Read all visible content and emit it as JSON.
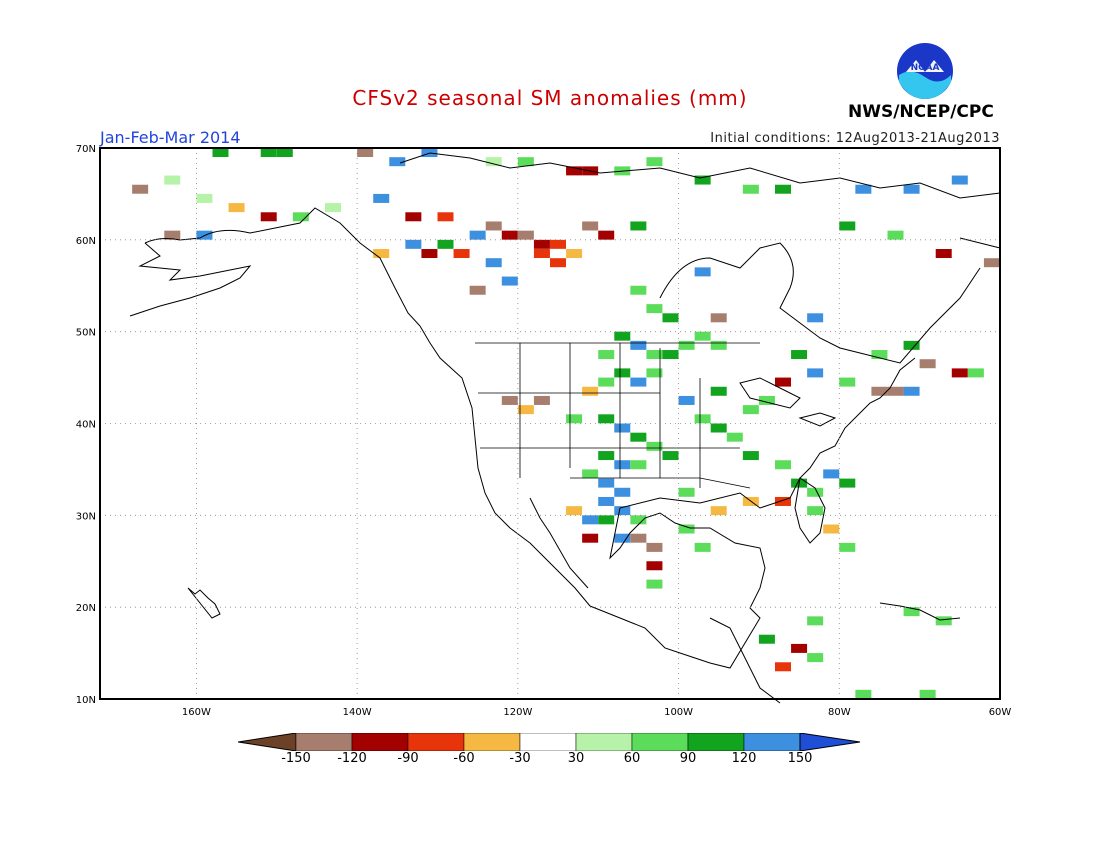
{
  "header": {
    "title": "CFSv2 seasonal SM anomalies (mm)",
    "period": "Jan-Feb-Mar 2014",
    "initial_conditions": "Initial conditions: 12Aug2013-21Aug2013",
    "agency": "NWS/NCEP/CPC",
    "logo_text": "NOAA"
  },
  "map": {
    "projection": "cylindrical lat/lon",
    "lon_range": [
      -172,
      -60
    ],
    "lat_range": [
      10,
      70
    ],
    "lat_labels": [
      "70N",
      "60N",
      "50N",
      "40N",
      "30N",
      "20N",
      "10N"
    ],
    "lon_labels": [
      "160W",
      "140W",
      "120W",
      "100W",
      "80W",
      "60W"
    ],
    "grid": "dotted"
  },
  "colorbar": {
    "labels": [
      "-150",
      "-120",
      "-90",
      "-60",
      "-30",
      "30",
      "60",
      "90",
      "120",
      "150"
    ],
    "colors": [
      "#6b4226",
      "#a77e6e",
      "#a30000",
      "#e8340b",
      "#f5b842",
      "#ffffff",
      "#b6f2a7",
      "#5bdd5b",
      "#12a31f",
      "#3d8fe0",
      "#1f4fd6"
    ]
  },
  "anomaly_cells": [
    {
      "lon": -158,
      "lat": 69,
      "v": 100
    },
    {
      "lon": -152,
      "lat": 69,
      "v": 100
    },
    {
      "lon": -150,
      "lat": 69,
      "v": 100
    },
    {
      "lon": -140,
      "lat": 69,
      "v": -130
    },
    {
      "lon": -136,
      "lat": 68,
      "v": 130
    },
    {
      "lon": -132,
      "lat": 69,
      "v": 130
    },
    {
      "lon": -124,
      "lat": 68,
      "v": 50
    },
    {
      "lon": -120,
      "lat": 68,
      "v": 70
    },
    {
      "lon": -114,
      "lat": 67,
      "v": -100
    },
    {
      "lon": -112,
      "lat": 67,
      "v": -120
    },
    {
      "lon": -108,
      "lat": 67,
      "v": 70
    },
    {
      "lon": -104,
      "lat": 68,
      "v": 70
    },
    {
      "lon": -98,
      "lat": 66,
      "v": 100
    },
    {
      "lon": -92,
      "lat": 65,
      "v": 70
    },
    {
      "lon": -88,
      "lat": 65,
      "v": 100
    },
    {
      "lon": -78,
      "lat": 65,
      "v": 130
    },
    {
      "lon": -72,
      "lat": 65,
      "v": 130
    },
    {
      "lon": -66,
      "lat": 66,
      "v": 130
    },
    {
      "lon": -168,
      "lat": 65,
      "v": -140
    },
    {
      "lon": -164,
      "lat": 66,
      "v": 50
    },
    {
      "lon": -160,
      "lat": 64,
      "v": 50
    },
    {
      "lon": -156,
      "lat": 63,
      "v": -40
    },
    {
      "lon": -152,
      "lat": 62,
      "v": -120
    },
    {
      "lon": -148,
      "lat": 62,
      "v": 70
    },
    {
      "lon": -144,
      "lat": 63,
      "v": 50
    },
    {
      "lon": -138,
      "lat": 64,
      "v": 130
    },
    {
      "lon": -134,
      "lat": 62,
      "v": -100
    },
    {
      "lon": -130,
      "lat": 62,
      "v": -70
    },
    {
      "lon": -126,
      "lat": 60,
      "v": 130
    },
    {
      "lon": -124,
      "lat": 61,
      "v": -130
    },
    {
      "lon": -122,
      "lat": 60,
      "v": -100
    },
    {
      "lon": -120,
      "lat": 60,
      "v": -130
    },
    {
      "lon": -118,
      "lat": 59,
      "v": -100
    },
    {
      "lon": -116,
      "lat": 59,
      "v": -70
    },
    {
      "lon": -118,
      "lat": 58,
      "v": -70
    },
    {
      "lon": -114,
      "lat": 58,
      "v": -40
    },
    {
      "lon": -116,
      "lat": 57,
      "v": -70
    },
    {
      "lon": -112,
      "lat": 61,
      "v": -130
    },
    {
      "lon": -110,
      "lat": 60,
      "v": -100
    },
    {
      "lon": -106,
      "lat": 61,
      "v": 100
    },
    {
      "lon": -134,
      "lat": 59,
      "v": 130
    },
    {
      "lon": -132,
      "lat": 58,
      "v": -100
    },
    {
      "lon": -138,
      "lat": 58,
      "v": -40
    },
    {
      "lon": -130,
      "lat": 59,
      "v": 100
    },
    {
      "lon": -128,
      "lat": 58,
      "v": -70
    },
    {
      "lon": -124,
      "lat": 57,
      "v": 130
    },
    {
      "lon": -122,
      "lat": 55,
      "v": 130
    },
    {
      "lon": -126,
      "lat": 54,
      "v": -130
    },
    {
      "lon": -164,
      "lat": 60,
      "v": -130
    },
    {
      "lon": -160,
      "lat": 60,
      "v": 130
    },
    {
      "lon": -62,
      "lat": 57,
      "v": -130
    },
    {
      "lon": -68,
      "lat": 58,
      "v": -120
    },
    {
      "lon": -74,
      "lat": 60,
      "v": 70
    },
    {
      "lon": -80,
      "lat": 61,
      "v": 100
    },
    {
      "lon": -98,
      "lat": 56,
      "v": 130
    },
    {
      "lon": -106,
      "lat": 54,
      "v": 70
    },
    {
      "lon": -104,
      "lat": 52,
      "v": 70
    },
    {
      "lon": -102,
      "lat": 51,
      "v": 100
    },
    {
      "lon": -96,
      "lat": 51,
      "v": -130
    },
    {
      "lon": -84,
      "lat": 51,
      "v": 130
    },
    {
      "lon": -108,
      "lat": 49,
      "v": 100
    },
    {
      "lon": -106,
      "lat": 48,
      "v": 130
    },
    {
      "lon": -104,
      "lat": 47,
      "v": 70
    },
    {
      "lon": -102,
      "lat": 47,
      "v": 100
    },
    {
      "lon": -100,
      "lat": 48,
      "v": 70
    },
    {
      "lon": -98,
      "lat": 49,
      "v": 70
    },
    {
      "lon": -96,
      "lat": 48,
      "v": 70
    },
    {
      "lon": -110,
      "lat": 47,
      "v": 70
    },
    {
      "lon": -108,
      "lat": 45,
      "v": 100
    },
    {
      "lon": -106,
      "lat": 44,
      "v": 130
    },
    {
      "lon": -104,
      "lat": 45,
      "v": 70
    },
    {
      "lon": -110,
      "lat": 44,
      "v": 70
    },
    {
      "lon": -112,
      "lat": 43,
      "v": -40
    },
    {
      "lon": -118,
      "lat": 42,
      "v": -140
    },
    {
      "lon": -122,
      "lat": 42,
      "v": -140
    },
    {
      "lon": -120,
      "lat": 41,
      "v": -40
    },
    {
      "lon": -114,
      "lat": 40,
      "v": 70
    },
    {
      "lon": -110,
      "lat": 40,
      "v": 100
    },
    {
      "lon": -108,
      "lat": 39,
      "v": 130
    },
    {
      "lon": -106,
      "lat": 38,
      "v": 100
    },
    {
      "lon": -104,
      "lat": 37,
      "v": 70
    },
    {
      "lon": -110,
      "lat": 36,
      "v": 100
    },
    {
      "lon": -108,
      "lat": 35,
      "v": 130
    },
    {
      "lon": -106,
      "lat": 35,
      "v": 70
    },
    {
      "lon": -112,
      "lat": 34,
      "v": 70
    },
    {
      "lon": -110,
      "lat": 33,
      "v": 130
    },
    {
      "lon": -108,
      "lat": 32,
      "v": 130
    },
    {
      "lon": -110,
      "lat": 31,
      "v": 130
    },
    {
      "lon": -108,
      "lat": 30,
      "v": 130
    },
    {
      "lon": -112,
      "lat": 29,
      "v": 130
    },
    {
      "lon": -110,
      "lat": 29,
      "v": 100
    },
    {
      "lon": -106,
      "lat": 29,
      "v": 70
    },
    {
      "lon": -106,
      "lat": 27,
      "v": -140
    },
    {
      "lon": -104,
      "lat": 26,
      "v": -140
    },
    {
      "lon": -108,
      "lat": 27,
      "v": 130
    },
    {
      "lon": -112,
      "lat": 27,
      "v": -100
    },
    {
      "lon": -114,
      "lat": 30,
      "v": -40
    },
    {
      "lon": -104,
      "lat": 24,
      "v": -100
    },
    {
      "lon": -104,
      "lat": 22,
      "v": 70
    },
    {
      "lon": -100,
      "lat": 28,
      "v": 70
    },
    {
      "lon": -98,
      "lat": 26,
      "v": 70
    },
    {
      "lon": -100,
      "lat": 32,
      "v": 70
    },
    {
      "lon": -102,
      "lat": 36,
      "v": 100
    },
    {
      "lon": -96,
      "lat": 39,
      "v": 100
    },
    {
      "lon": -94,
      "lat": 38,
      "v": 70
    },
    {
      "lon": -98,
      "lat": 40,
      "v": 70
    },
    {
      "lon": -100,
      "lat": 42,
      "v": 130
    },
    {
      "lon": -96,
      "lat": 43,
      "v": 100
    },
    {
      "lon": -92,
      "lat": 41,
      "v": 70
    },
    {
      "lon": -90,
      "lat": 42,
      "v": 70
    },
    {
      "lon": -92,
      "lat": 36,
      "v": 100
    },
    {
      "lon": -88,
      "lat": 35,
      "v": 70
    },
    {
      "lon": -86,
      "lat": 33,
      "v": 100
    },
    {
      "lon": -84,
      "lat": 32,
      "v": 70
    },
    {
      "lon": -82,
      "lat": 34,
      "v": 130
    },
    {
      "lon": -80,
      "lat": 33,
      "v": 100
    },
    {
      "lon": -88,
      "lat": 31,
      "v": -70
    },
    {
      "lon": -92,
      "lat": 31,
      "v": -40
    },
    {
      "lon": -96,
      "lat": 30,
      "v": -40
    },
    {
      "lon": -84,
      "lat": 30,
      "v": 70
    },
    {
      "lon": -82,
      "lat": 28,
      "v": -40
    },
    {
      "lon": -80,
      "lat": 26,
      "v": 70
    },
    {
      "lon": -88,
      "lat": 44,
      "v": -100
    },
    {
      "lon": -84,
      "lat": 45,
      "v": 130
    },
    {
      "lon": -80,
      "lat": 44,
      "v": 70
    },
    {
      "lon": -76,
      "lat": 43,
      "v": -140
    },
    {
      "lon": -74,
      "lat": 43,
      "v": -140
    },
    {
      "lon": -72,
      "lat": 43,
      "v": 130
    },
    {
      "lon": -70,
      "lat": 46,
      "v": -130
    },
    {
      "lon": -66,
      "lat": 45,
      "v": -100
    },
    {
      "lon": -64,
      "lat": 45,
      "v": 70
    },
    {
      "lon": -76,
      "lat": 47,
      "v": 70
    },
    {
      "lon": -72,
      "lat": 48,
      "v": 100
    },
    {
      "lon": -86,
      "lat": 47,
      "v": 100
    },
    {
      "lon": -90,
      "lat": 16,
      "v": 100
    },
    {
      "lon": -86,
      "lat": 15,
      "v": -100
    },
    {
      "lon": -84,
      "lat": 14,
      "v": 70
    },
    {
      "lon": -88,
      "lat": 13,
      "v": -70
    },
    {
      "lon": -84,
      "lat": 18,
      "v": 70
    },
    {
      "lon": -72,
      "lat": 19,
      "v": 70
    },
    {
      "lon": -68,
      "lat": 18,
      "v": 70
    },
    {
      "lon": -78,
      "lat": 10,
      "v": 70
    },
    {
      "lon": -70,
      "lat": 10,
      "v": 70
    }
  ]
}
